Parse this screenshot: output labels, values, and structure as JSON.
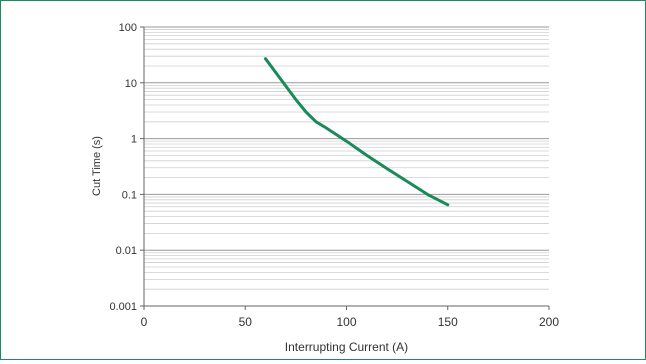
{
  "chart_data": {
    "type": "line",
    "title": "",
    "xlabel": "Interrupting Current (A)",
    "ylabel": "Cut Time (s)",
    "xlim": [
      0,
      200
    ],
    "ylim": [
      0.001,
      100
    ],
    "y_scale": "log",
    "grid": true,
    "x_ticks": [
      0,
      50,
      100,
      150,
      200
    ],
    "x_tick_labels": [
      "0",
      "50",
      "100",
      "150",
      "200"
    ],
    "y_ticks": [
      100,
      10,
      1,
      0.1,
      0.01,
      0.001
    ],
    "y_tick_labels": [
      "100",
      "10",
      "1",
      "0.1",
      "0.01",
      "0.001"
    ],
    "series": [
      {
        "color": "#1a8a5a",
        "x": [
          60,
          68,
          75,
          80,
          85,
          90,
          100,
          110,
          120,
          130,
          140,
          150
        ],
        "y": [
          27,
          11,
          5,
          3,
          2,
          1.55,
          0.9,
          0.5,
          0.29,
          0.17,
          0.1,
          0.065
        ]
      }
    ]
  },
  "colors": {
    "frame_border": "#1e8a5e",
    "grid_major": "#999999",
    "grid_minor": "#cfcfcf",
    "line": "#1a8a5a"
  }
}
